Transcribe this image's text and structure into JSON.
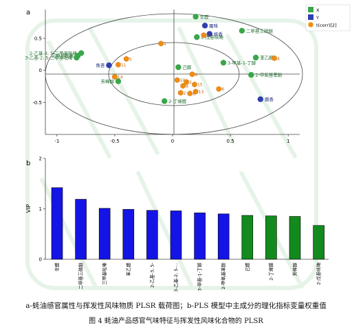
{
  "panel_a_letter": "a",
  "panel_b_letter": "b",
  "captions": {
    "line1": "a-蚝油感官属性与挥发性风味物质 PLSR 载荷图；b-PLS 模型中主成分的理化指标变量权重值",
    "line2": "图 4  蚝油产品感官气味特征与挥发性风味化合物的 PLSR"
  },
  "colors": {
    "x_series": "#3aa64a",
    "y_series": "#2e3fae",
    "tcorr": "#f28c10",
    "vip_blue": "#1414e6",
    "vip_green": "#138a1d"
  },
  "chart_data": [
    {
      "type": "scatter",
      "legend_position": "top-right",
      "xlim": [
        -1.1,
        1.1
      ],
      "ylim": [
        -1.0,
        0.95
      ],
      "xticks": [
        "-1",
        "-0.5",
        "0",
        "0.5",
        "1"
      ],
      "yticks": [
        "0.5",
        "0",
        "-0.5"
      ],
      "grid": false,
      "series": [
        {
          "name": "X",
          "marker": "circle",
          "points": [
            {
              "label": "辛醛",
              "x": 0.2,
              "y": 0.84
            },
            {
              "label": "2-戊基呋喃",
              "x": 0.21,
              "y": 0.52
            },
            {
              "label": "二甲基三硫醚",
              "x": 0.6,
              "y": 0.62
            },
            {
              "label": "2-乙基-3, 5-二甲基吡嗪",
              "x": -0.79,
              "y": 0.27
            },
            {
              "label": "三甲基吡嗪",
              "x": -0.82,
              "y": 0.23
            },
            {
              "label": "3-乙基-2, 5-二甲基吡嗪",
              "x": -0.83,
              "y": 0.2
            },
            {
              "label": "己醛",
              "x": 0.05,
              "y": 0.05
            },
            {
              "label": "3-甲基-1-丁醇",
              "x": 0.44,
              "y": 0.12
            },
            {
              "label": "苯乙醛",
              "x": 0.72,
              "y": 0.2
            },
            {
              "label": "2-甲氧基苯酚",
              "x": 0.68,
              "y": -0.07
            },
            {
              "label": "芳樟醇",
              "x": -0.47,
              "y": -0.17
            },
            {
              "label": "2-丁烯醛",
              "x": -0.07,
              "y": -0.48
            }
          ]
        },
        {
          "name": "Y",
          "marker": "circle",
          "points": [
            {
              "label": "腥味",
              "x": 0.28,
              "y": 0.7
            },
            {
              "label": "蚝香",
              "x": 0.32,
              "y": 0.57
            },
            {
              "label": "焦香",
              "x": -0.55,
              "y": 0.08
            },
            {
              "label": "酱香",
              "x": 0.76,
              "y": -0.45
            }
          ]
        },
        {
          "name": "t(corr)[2]",
          "marker": "hexagon",
          "points": [
            {
              "label": "1",
              "x": -0.1,
              "y": 0.42
            },
            {
              "label": "2",
              "x": 0.27,
              "y": 0.55
            },
            {
              "label": "4",
              "x": 0.88,
              "y": 0.19
            },
            {
              "label": "5",
              "x": -0.4,
              "y": 0.18
            },
            {
              "label": "6",
              "x": 0.4,
              "y": -0.29
            },
            {
              "label": "9",
              "x": 0.17,
              "y": -0.06
            },
            {
              "label": "10",
              "x": 0.04,
              "y": -0.15
            },
            {
              "label": "11",
              "x": -0.47,
              "y": 0.09
            },
            {
              "label": "13",
              "x": 0.2,
              "y": -0.33
            },
            {
              "label": "14",
              "x": -0.5,
              "y": -0.1
            },
            {
              "label": "15",
              "x": 0.19,
              "y": -0.22
            },
            {
              "label": "8",
              "x": 0.09,
              "y": -0.24
            },
            {
              "label": "2",
              "x": 0.07,
              "y": -0.35
            },
            {
              "label": "6",
              "x": 0.15,
              "y": -0.36
            },
            {
              "label": "2",
              "x": 0.12,
              "y": -0.18
            }
          ]
        }
      ]
    },
    {
      "type": "bar",
      "ylabel": "VIP",
      "ylim": [
        0,
        2
      ],
      "yticks": [
        "2",
        "1",
        "0"
      ],
      "categories": [
        "辛醛",
        "二甲基三硫醚",
        "三甲基吡嗪",
        "苯乙醛",
        "2-乙基-3, 5-",
        "3-乙基-2, 5-...",
        "3-甲基-1-丁醇",
        "2-甲氧基苯酚",
        "己醛",
        "2-丁烯醛",
        "芳樟醇",
        "2-戊基呋喃"
      ],
      "values": [
        1.42,
        1.19,
        1.01,
        0.99,
        0.97,
        0.96,
        0.92,
        0.9,
        0.87,
        0.86,
        0.85,
        0.67
      ],
      "bar_colors": [
        "blue",
        "blue",
        "blue",
        "blue",
        "blue",
        "blue",
        "blue",
        "blue",
        "green",
        "green",
        "green",
        "green"
      ]
    }
  ]
}
